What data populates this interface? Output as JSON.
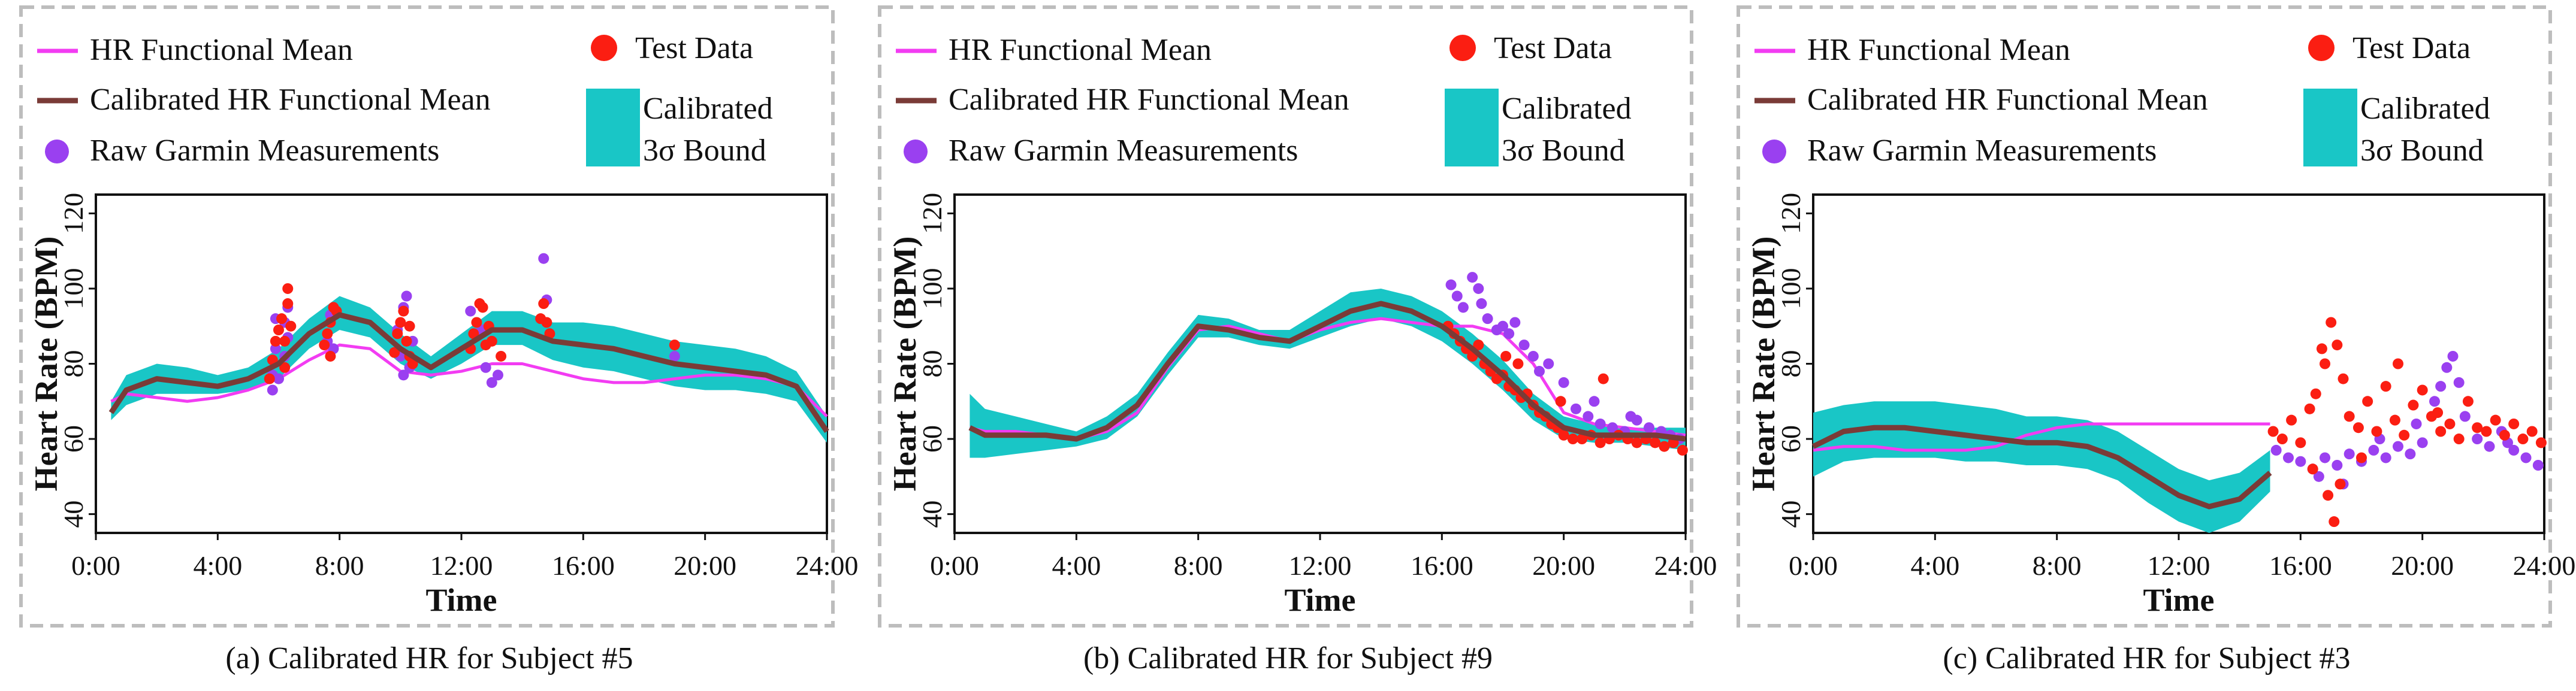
{
  "legend": {
    "hr_mean": "HR Functional Mean",
    "cal_mean": "Calibrated HR Functional Mean",
    "raw": "Raw Garmin Measurements",
    "test": "Test Data",
    "bound_line1": "Calibrated",
    "bound_line2": "3σ Bound"
  },
  "colors": {
    "hr_mean": "#f23cf2",
    "cal_mean": "#7a3b37",
    "raw": "#9a40f0",
    "test": "#fb1e12",
    "bound": "#19c6c6",
    "frame": "#bdbdbd"
  },
  "chart_data": [
    {
      "type": "line",
      "title": "(a) Calibrated HR for Subject #5",
      "xlabel": "Time",
      "ylabel": "Heart Rate (BPM)",
      "xlim": [
        0,
        24
      ],
      "ylim": [
        35,
        125
      ],
      "xticks": [
        0,
        4,
        8,
        12,
        16,
        20,
        24
      ],
      "xtick_labels": [
        "0:00",
        "4:00",
        "8:00",
        "12:00",
        "16:00",
        "20:00",
        "24:00"
      ],
      "yticks": [
        40,
        60,
        80,
        100,
        120
      ],
      "ytick_labels": [
        "40",
        "60",
        "80",
        "100",
        "120"
      ],
      "series": [
        {
          "name": "HR Functional Mean",
          "x": [
            0.5,
            1,
            2,
            3,
            4,
            5,
            6,
            7,
            8,
            9,
            10,
            11,
            12,
            13,
            14,
            15,
            16,
            17,
            18,
            19,
            20,
            21,
            22,
            23,
            24
          ],
          "y": [
            70,
            72,
            71,
            70,
            71,
            73,
            76,
            81,
            85,
            84,
            78,
            77,
            78,
            80,
            80,
            78,
            76,
            75,
            75,
            76,
            77,
            77,
            76,
            74,
            66
          ]
        },
        {
          "name": "Calibrated HR Functional Mean",
          "x": [
            0.5,
            1,
            2,
            3,
            4,
            5,
            6,
            7,
            8,
            9,
            10,
            11,
            12,
            13,
            14,
            15,
            16,
            17,
            18,
            19,
            20,
            21,
            22,
            23,
            24
          ],
          "y": [
            67,
            73,
            76,
            75,
            74,
            76,
            80,
            88,
            93,
            91,
            84,
            79,
            84,
            89,
            89,
            86,
            85,
            84,
            82,
            80,
            79,
            78,
            77,
            74,
            62
          ]
        },
        {
          "name": "Calibrated 3σ Bound",
          "x": [
            0.5,
            1,
            2,
            3,
            4,
            5,
            6,
            7,
            8,
            9,
            10,
            11,
            12,
            13,
            14,
            15,
            16,
            17,
            18,
            19,
            20,
            21,
            22,
            23,
            24
          ],
          "y_low": [
            65,
            69,
            72,
            72,
            72,
            73,
            76,
            84,
            89,
            87,
            80,
            76,
            80,
            85,
            85,
            81,
            79,
            78,
            76,
            74,
            73,
            73,
            72,
            70,
            59
          ],
          "y_high": [
            70,
            77,
            80,
            79,
            77,
            79,
            84,
            92,
            98,
            95,
            88,
            82,
            88,
            94,
            94,
            91,
            91,
            90,
            88,
            86,
            85,
            84,
            82,
            78,
            66
          ]
        },
        {
          "name": "Raw Garmin Measurements",
          "x": [
            5.8,
            5.8,
            5.9,
            5.9,
            6.0,
            6.2,
            6.2,
            6.3,
            6.3,
            7.6,
            7.7,
            7.8,
            7.7,
            7.8,
            9.9,
            10.0,
            10.1,
            10.1,
            10.2,
            10.3,
            10.4,
            12.3,
            12.5,
            12.7,
            12.8,
            13.0,
            13.2,
            14.7,
            14.8,
            19.0
          ],
          "y": [
            73,
            77,
            92,
            84,
            76,
            91,
            82,
            87,
            95,
            86,
            91,
            95,
            93,
            84,
            89,
            82,
            77,
            95,
            98,
            79,
            86,
            94,
            88,
            89,
            79,
            75,
            77,
            108,
            97,
            82
          ]
        },
        {
          "name": "Test Data",
          "x": [
            5.7,
            5.8,
            5.9,
            6.0,
            6.1,
            6.2,
            6.3,
            6.3,
            6.4,
            6.2,
            7.5,
            7.6,
            7.7,
            7.8,
            7.9,
            7.7,
            9.8,
            9.9,
            10.0,
            10.1,
            10.2,
            10.3,
            10.4,
            10.3,
            12.3,
            12.4,
            12.5,
            12.6,
            12.7,
            12.8,
            12.9,
            13.0,
            13.3,
            14.6,
            14.7,
            14.8,
            14.9,
            19.0
          ],
          "y": [
            76,
            81,
            86,
            89,
            92,
            86,
            96,
            100,
            90,
            79,
            85,
            88,
            91,
            95,
            94,
            82,
            83,
            88,
            91,
            94,
            86,
            82,
            80,
            90,
            84,
            88,
            91,
            96,
            95,
            85,
            90,
            86,
            82,
            92,
            96,
            91,
            88,
            85
          ]
        }
      ]
    },
    {
      "type": "line",
      "title": "(b) Calibrated HR for Subject #9",
      "xlabel": "Time",
      "ylabel": "Heart Rate (BPM)",
      "xlim": [
        0,
        24
      ],
      "ylim": [
        35,
        125
      ],
      "xticks": [
        0,
        4,
        8,
        12,
        16,
        20,
        24
      ],
      "xtick_labels": [
        "0:00",
        "4:00",
        "8:00",
        "12:00",
        "16:00",
        "20:00",
        "24:00"
      ],
      "yticks": [
        40,
        60,
        80,
        100,
        120
      ],
      "ytick_labels": [
        "40",
        "60",
        "80",
        "100",
        "120"
      ],
      "series": [
        {
          "name": "HR Functional Mean",
          "x": [
            0.5,
            1,
            2,
            3,
            4,
            5,
            6,
            7,
            8,
            9,
            10,
            11,
            12,
            13,
            14,
            15,
            16,
            17,
            18,
            19,
            20,
            21,
            22,
            23,
            24
          ],
          "y": [
            63,
            62,
            62,
            61,
            60,
            62,
            67,
            79,
            89,
            90,
            88,
            86,
            89,
            91,
            92,
            91,
            90,
            90,
            88,
            80,
            67,
            64,
            63,
            62,
            61
          ]
        },
        {
          "name": "Calibrated HR Functional Mean",
          "x": [
            0.5,
            1,
            2,
            3,
            4,
            5,
            6,
            7,
            8,
            9,
            10,
            11,
            12,
            13,
            14,
            15,
            16,
            17,
            18,
            19,
            20,
            21,
            22,
            23,
            24
          ],
          "y": [
            63,
            61,
            61,
            61,
            60,
            63,
            69,
            80,
            90,
            89,
            87,
            86,
            90,
            94,
            96,
            94,
            90,
            84,
            77,
            69,
            63,
            61,
            61,
            61,
            60
          ]
        },
        {
          "name": "Calibrated 3σ Bound",
          "x": [
            0.5,
            1,
            2,
            3,
            4,
            5,
            6,
            7,
            8,
            9,
            10,
            11,
            12,
            13,
            14,
            15,
            16,
            17,
            18,
            19,
            20,
            21,
            22,
            23,
            24
          ],
          "y_low": [
            55,
            55,
            56,
            57,
            58,
            60,
            66,
            77,
            87,
            87,
            85,
            84,
            87,
            90,
            92,
            90,
            86,
            80,
            73,
            65,
            60,
            59,
            59,
            58,
            57
          ],
          "y_high": [
            72,
            68,
            66,
            64,
            62,
            66,
            72,
            83,
            93,
            92,
            89,
            89,
            94,
            99,
            100,
            98,
            94,
            88,
            81,
            72,
            66,
            64,
            63,
            63,
            63
          ]
        },
        {
          "name": "Raw Garmin Measurements",
          "x": [
            16.3,
            16.5,
            16.7,
            17.0,
            17.2,
            17.3,
            17.5,
            17.8,
            18.0,
            18.2,
            18.4,
            18.7,
            19.0,
            19.5,
            20.0,
            20.4,
            20.8,
            21.2,
            21.6,
            22.0,
            22.4,
            22.8,
            23.2,
            23.5,
            23.8,
            19.2,
            21.0,
            22.2
          ],
          "y": [
            101,
            98,
            95,
            103,
            100,
            96,
            92,
            89,
            90,
            88,
            91,
            85,
            82,
            80,
            75,
            68,
            66,
            64,
            63,
            62,
            65,
            63,
            62,
            61,
            60,
            78,
            70,
            66
          ]
        },
        {
          "name": "Test Data",
          "x": [
            16.2,
            16.4,
            16.6,
            16.8,
            17.0,
            17.2,
            17.4,
            17.6,
            17.8,
            18.0,
            18.2,
            18.4,
            18.6,
            18.8,
            19.0,
            19.2,
            19.4,
            19.6,
            19.8,
            20.0,
            20.3,
            20.6,
            20.9,
            21.2,
            21.5,
            21.8,
            22.1,
            22.4,
            22.7,
            23.0,
            23.3,
            23.6,
            23.9,
            18.1,
            18.5,
            19.9,
            21.3
          ],
          "y": [
            90,
            88,
            86,
            84,
            82,
            85,
            80,
            78,
            76,
            77,
            74,
            73,
            71,
            72,
            69,
            67,
            66,
            64,
            63,
            61,
            60,
            60,
            61,
            59,
            60,
            61,
            60,
            59,
            60,
            59,
            58,
            59,
            57,
            82,
            80,
            70,
            76
          ]
        }
      ]
    },
    {
      "type": "line",
      "title": "(c) Calibrated HR for Subject #3",
      "xlabel": "Time",
      "ylabel": "Heart Rate (BPM)",
      "xlim": [
        0,
        24
      ],
      "ylim": [
        35,
        125
      ],
      "xticks": [
        0,
        4,
        8,
        12,
        16,
        20,
        24
      ],
      "xtick_labels": [
        "0:00",
        "4:00",
        "8:00",
        "12:00",
        "16:00",
        "20:00",
        "24:00"
      ],
      "yticks": [
        40,
        60,
        80,
        100,
        120
      ],
      "ytick_labels": [
        "40",
        "60",
        "80",
        "100",
        "120"
      ],
      "series": [
        {
          "name": "HR Functional Mean",
          "x": [
            0,
            1,
            2,
            3,
            4,
            5,
            6,
            7,
            8,
            9,
            10,
            11,
            12,
            13,
            14,
            15
          ],
          "y": [
            57,
            58,
            58,
            57,
            57,
            57,
            58,
            61,
            63,
            64,
            64,
            64,
            64,
            64,
            64,
            64
          ]
        },
        {
          "name": "Calibrated HR Functional Mean",
          "x": [
            0,
            1,
            2,
            3,
            4,
            5,
            6,
            7,
            8,
            9,
            10,
            11,
            12,
            13,
            14,
            15
          ],
          "y": [
            58,
            62,
            63,
            63,
            62,
            61,
            60,
            59,
            59,
            58,
            55,
            50,
            45,
            42,
            44,
            51
          ]
        },
        {
          "name": "Calibrated 3σ Bound",
          "x": [
            0,
            1,
            2,
            3,
            4,
            5,
            6,
            7,
            8,
            9,
            10,
            11,
            12,
            13,
            14,
            15
          ],
          "y_low": [
            50,
            54,
            55,
            55,
            55,
            54,
            54,
            53,
            53,
            52,
            49,
            43,
            38,
            35,
            38,
            46
          ],
          "y_high": [
            67,
            69,
            70,
            70,
            70,
            69,
            68,
            66,
            66,
            65,
            62,
            57,
            52,
            49,
            51,
            57
          ]
        },
        {
          "name": "Raw Garmin Measurements",
          "x": [
            15.2,
            15.6,
            16.0,
            16.4,
            16.8,
            17.2,
            17.6,
            18.0,
            18.4,
            18.8,
            19.2,
            19.6,
            20.0,
            20.4,
            20.8,
            21.0,
            21.2,
            21.4,
            21.8,
            22.2,
            22.6,
            23.0,
            23.4,
            23.8,
            16.6,
            17.4,
            18.6,
            19.8,
            20.6,
            22.8
          ],
          "y": [
            57,
            55,
            54,
            52,
            55,
            53,
            56,
            54,
            57,
            55,
            58,
            56,
            59,
            70,
            79,
            82,
            75,
            66,
            60,
            58,
            62,
            57,
            55,
            53,
            50,
            48,
            60,
            64,
            74,
            59
          ]
        },
        {
          "name": "Test Data",
          "x": [
            15.1,
            15.4,
            15.7,
            16.0,
            16.3,
            16.5,
            16.8,
            17.0,
            17.2,
            17.4,
            17.6,
            17.9,
            18.2,
            18.5,
            18.8,
            19.1,
            19.4,
            19.7,
            20.0,
            20.3,
            20.6,
            20.9,
            21.2,
            21.5,
            21.8,
            22.1,
            22.4,
            22.7,
            23.0,
            23.3,
            23.6,
            23.9,
            16.9,
            17.1,
            16.7,
            17.3,
            18.0,
            19.2,
            20.5,
            16.4
          ],
          "y": [
            62,
            60,
            65,
            59,
            68,
            72,
            80,
            91,
            85,
            76,
            66,
            63,
            70,
            62,
            74,
            65,
            61,
            69,
            73,
            66,
            62,
            64,
            60,
            70,
            63,
            62,
            65,
            61,
            64,
            60,
            62,
            59,
            45,
            38,
            84,
            48,
            55,
            80,
            67,
            52
          ]
        }
      ]
    }
  ]
}
